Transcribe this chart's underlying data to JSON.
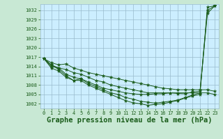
{
  "title": "Graphe pression niveau de la mer (hPa)",
  "background_color": "#c8e8d4",
  "plot_bg_color": "#cceeff",
  "grid_color": "#99bbcc",
  "line_color": "#1a5c1a",
  "outer_bg": "#c8e8d4",
  "xlim": [
    -0.5,
    23.5
  ],
  "ylim": [
    1000.5,
    1034
  ],
  "yticks": [
    1002,
    1005,
    1008,
    1011,
    1014,
    1017,
    1020,
    1023,
    1026,
    1029,
    1032
  ],
  "xticks": [
    0,
    1,
    2,
    3,
    4,
    5,
    6,
    7,
    8,
    9,
    10,
    11,
    12,
    13,
    14,
    15,
    16,
    17,
    18,
    19,
    20,
    21,
    22,
    23
  ],
  "series": [
    [
      1016.5,
      1015.2,
      1014.5,
      1014.8,
      1013.5,
      1012.8,
      1012.0,
      1011.5,
      1011.0,
      1010.5,
      1010.0,
      1009.5,
      1009.0,
      1008.5,
      1008.0,
      1007.5,
      1007.0,
      1006.8,
      1006.5,
      1006.5,
      1006.5,
      1006.5,
      1006.5,
      1006.0
    ],
    [
      1016.5,
      1014.5,
      1013.5,
      1013.0,
      1012.0,
      1011.5,
      1010.5,
      1009.5,
      1009.0,
      1008.0,
      1007.5,
      1007.0,
      1006.5,
      1006.0,
      1005.5,
      1005.5,
      1005.5,
      1005.5,
      1005.5,
      1005.5,
      1005.5,
      1005.5,
      1005.5,
      1005.0
    ],
    [
      1016.5,
      1014.0,
      1013.5,
      1011.5,
      1010.5,
      1010.0,
      1009.0,
      1008.0,
      1007.0,
      1006.5,
      1006.0,
      1005.5,
      1005.2,
      1005.0,
      1005.0,
      1005.2,
      1005.2,
      1005.5,
      1005.3,
      1005.2,
      1005.8,
      1006.0,
      1031.0,
      1033.5
    ],
    [
      1016.5,
      1014.5,
      1013.0,
      1011.0,
      1009.5,
      1010.0,
      1008.5,
      1007.5,
      1006.5,
      1005.5,
      1005.0,
      1004.0,
      1003.5,
      1002.8,
      1002.5,
      1002.2,
      1002.5,
      1002.8,
      1003.2,
      1004.0,
      1004.8,
      1005.5,
      1032.0,
      1033.5
    ],
    [
      1016.5,
      1013.5,
      1012.5,
      1010.5,
      1009.5,
      1009.5,
      1008.0,
      1007.0,
      1006.0,
      1005.0,
      1004.0,
      1003.0,
      1002.3,
      1002.0,
      1001.5,
      1001.8,
      1002.0,
      1002.5,
      1003.0,
      1003.8,
      1004.5,
      1005.0,
      1033.0,
      1033.5
    ]
  ],
  "marker": "*",
  "markersize": 3.5,
  "linewidth": 0.7,
  "title_fontsize": 7.5,
  "tick_fontsize": 5.0
}
